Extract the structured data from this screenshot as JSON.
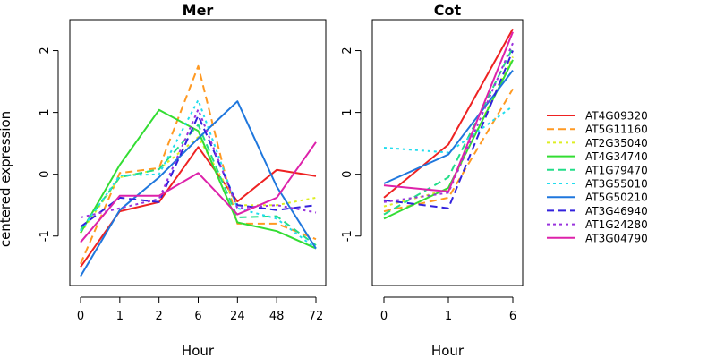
{
  "figure": {
    "ylabel": "centered expression"
  },
  "chart_data": [
    {
      "type": "line",
      "title": "Mer",
      "xlabel": "Hour",
      "ylabel": "centered expression",
      "categories": [
        "0",
        "1",
        "2",
        "6",
        "24",
        "48",
        "72"
      ],
      "yticks": [
        -1,
        0,
        1,
        2
      ],
      "ylim": [
        -1.8,
        2.5
      ],
      "grid": false,
      "series": [
        {
          "name": "AT4G09320",
          "values": [
            -1.5,
            -0.6,
            -0.45,
            0.44,
            -0.44,
            0.07,
            -0.03
          ]
        },
        {
          "name": "AT5G11160",
          "values": [
            -1.45,
            0.02,
            0.1,
            1.75,
            -0.8,
            -0.8,
            -1.05
          ]
        },
        {
          "name": "AT2G35040",
          "values": [
            -0.95,
            -0.05,
            0.08,
            0.6,
            -0.5,
            -0.5,
            -0.38
          ]
        },
        {
          "name": "AT4G34740",
          "values": [
            -0.95,
            0.15,
            1.04,
            0.7,
            -0.78,
            -0.92,
            -1.2
          ]
        },
        {
          "name": "AT1G79470",
          "values": [
            -0.9,
            -0.05,
            0.08,
            0.8,
            -0.7,
            -0.68,
            -1.15
          ]
        },
        {
          "name": "AT3G55010",
          "values": [
            -0.92,
            -0.02,
            0.0,
            1.2,
            -0.55,
            -0.72,
            -1.2
          ]
        },
        {
          "name": "AT5G50210",
          "values": [
            -1.65,
            -0.58,
            -0.05,
            0.58,
            1.18,
            -0.2,
            -1.2
          ]
        },
        {
          "name": "AT3G46940",
          "values": [
            -0.85,
            -0.38,
            -0.45,
            0.95,
            -0.5,
            -0.58,
            -0.5
          ]
        },
        {
          "name": "AT1G24280",
          "values": [
            -0.7,
            -0.55,
            -0.4,
            1.05,
            -0.55,
            -0.5,
            -0.62
          ]
        },
        {
          "name": "AT3G04790",
          "values": [
            -1.1,
            -0.35,
            -0.35,
            0.02,
            -0.65,
            -0.38,
            0.52
          ]
        }
      ]
    },
    {
      "type": "line",
      "title": "Cot",
      "xlabel": "Hour",
      "categories": [
        "0",
        "1",
        "6"
      ],
      "yticks": [
        -1,
        0,
        1,
        2
      ],
      "ylim": [
        -1.8,
        2.5
      ],
      "grid": false,
      "series": [
        {
          "name": "AT4G09320",
          "values": [
            -0.38,
            0.48,
            2.35
          ]
        },
        {
          "name": "AT5G11160",
          "values": [
            -0.6,
            -0.38,
            1.38
          ]
        },
        {
          "name": "AT2G35040",
          "values": [
            -0.52,
            -0.25,
            1.9
          ]
        },
        {
          "name": "AT4G34740",
          "values": [
            -0.72,
            -0.22,
            1.85
          ]
        },
        {
          "name": "AT1G79470",
          "values": [
            -0.65,
            -0.05,
            2.05
          ]
        },
        {
          "name": "AT3G55010",
          "values": [
            0.43,
            0.35,
            1.1
          ]
        },
        {
          "name": "AT5G50210",
          "values": [
            -0.15,
            0.32,
            1.68
          ]
        },
        {
          "name": "AT3G46940",
          "values": [
            -0.42,
            -0.55,
            2.0
          ]
        },
        {
          "name": "AT1G24280",
          "values": [
            -0.45,
            -0.3,
            2.12
          ]
        },
        {
          "name": "AT3G04790",
          "values": [
            -0.18,
            -0.28,
            2.3
          ]
        }
      ]
    }
  ],
  "legend": {
    "position": "right",
    "items": [
      {
        "label": "AT4G09320",
        "color": "#ee2222",
        "dash": "solid"
      },
      {
        "label": "AT5G11160",
        "color": "#ff9922",
        "dash": "dashed"
      },
      {
        "label": "AT2G35040",
        "color": "#ddee22",
        "dash": "dotted"
      },
      {
        "label": "AT4G34740",
        "color": "#33dd33",
        "dash": "solid"
      },
      {
        "label": "AT1G79470",
        "color": "#22dd88",
        "dash": "dashed"
      },
      {
        "label": "AT3G55010",
        "color": "#22ddee",
        "dash": "dotted"
      },
      {
        "label": "AT5G50210",
        "color": "#1f77dd",
        "dash": "solid"
      },
      {
        "label": "AT3G46940",
        "color": "#3322dd",
        "dash": "dashed"
      },
      {
        "label": "AT1G24280",
        "color": "#9933dd",
        "dash": "dotted"
      },
      {
        "label": "AT3G04790",
        "color": "#dd22aa",
        "dash": "solid"
      }
    ]
  }
}
